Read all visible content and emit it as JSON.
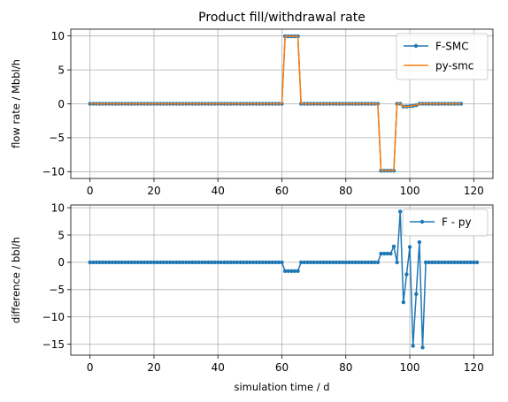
{
  "chart_data": [
    {
      "type": "line",
      "title": "Product fill/withdrawal rate",
      "xlabel": "",
      "ylabel": "flow rate / Mbbl/h",
      "xlim": [
        -6,
        126
      ],
      "ylim": [
        -11,
        11
      ],
      "xticks": [
        0,
        20,
        40,
        60,
        80,
        100,
        120
      ],
      "yticks": [
        -10,
        -5,
        0,
        5,
        10
      ],
      "grid": true,
      "legend": "top-right",
      "x_start": 0,
      "x_step": 1,
      "colors": {
        "F-SMC": "#1f77b4",
        "py-smc": "#ff7f0e"
      },
      "series": [
        {
          "name": "F-SMC",
          "marker": "circle",
          "values": [
            0,
            0,
            0,
            0,
            0,
            0,
            0,
            0,
            0,
            0,
            0,
            0,
            0,
            0,
            0,
            0,
            0,
            0,
            0,
            0,
            0,
            0,
            0,
            0,
            0,
            0,
            0,
            0,
            0,
            0,
            0,
            0,
            0,
            0,
            0,
            0,
            0,
            0,
            0,
            0,
            0,
            0,
            0,
            0,
            0,
            0,
            0,
            0,
            0,
            0,
            0,
            0,
            0,
            0,
            0,
            0,
            0,
            0,
            0,
            0,
            0,
            9.95,
            9.95,
            9.95,
            9.95,
            9.95,
            0,
            0,
            0,
            0,
            0,
            0,
            0,
            0,
            0,
            0,
            0,
            0,
            0,
            0,
            0,
            0,
            0,
            0,
            0,
            0,
            0,
            0,
            0,
            0,
            0,
            -9.85,
            -9.85,
            -9.85,
            -9.85,
            -9.85,
            0,
            0,
            -0.4,
            -0.4,
            -0.35,
            -0.3,
            -0.2,
            0,
            0,
            0,
            0,
            0,
            0,
            0,
            0,
            0,
            0,
            0,
            0,
            0,
            0
          ]
        },
        {
          "name": "py-smc",
          "marker": "none",
          "values": [
            0,
            0,
            0,
            0,
            0,
            0,
            0,
            0,
            0,
            0,
            0,
            0,
            0,
            0,
            0,
            0,
            0,
            0,
            0,
            0,
            0,
            0,
            0,
            0,
            0,
            0,
            0,
            0,
            0,
            0,
            0,
            0,
            0,
            0,
            0,
            0,
            0,
            0,
            0,
            0,
            0,
            0,
            0,
            0,
            0,
            0,
            0,
            0,
            0,
            0,
            0,
            0,
            0,
            0,
            0,
            0,
            0,
            0,
            0,
            0,
            0,
            9.95,
            9.95,
            9.95,
            9.95,
            9.95,
            0,
            0,
            0,
            0,
            0,
            0,
            0,
            0,
            0,
            0,
            0,
            0,
            0,
            0,
            0,
            0,
            0,
            0,
            0,
            0,
            0,
            0,
            0,
            0,
            0,
            -9.85,
            -9.85,
            -9.85,
            -9.85,
            -9.85,
            0,
            0,
            -0.4,
            -0.4,
            -0.35,
            -0.3,
            -0.2,
            0,
            0,
            0,
            0,
            0,
            0,
            0,
            0,
            0,
            0,
            0,
            0,
            0,
            0
          ]
        }
      ]
    },
    {
      "type": "line",
      "title": "",
      "xlabel": "simulation time / d",
      "ylabel": "difference /  bbl/h",
      "xlim": [
        -6,
        126
      ],
      "ylim": [
        -17,
        10.5
      ],
      "xticks": [
        0,
        20,
        40,
        60,
        80,
        100,
        120
      ],
      "yticks": [
        -15,
        -10,
        -5,
        0,
        5,
        10
      ],
      "grid": true,
      "legend": "top-right",
      "x_start": 0,
      "x_step": 1,
      "colors": {
        "F - py": "#1f77b4"
      },
      "series": [
        {
          "name": "F - py",
          "marker": "circle",
          "values": [
            0,
            0,
            0,
            0,
            0,
            0,
            0,
            0,
            0,
            0,
            0,
            0,
            0,
            0,
            0,
            0,
            0,
            0,
            0,
            0,
            0,
            0,
            0,
            0,
            0,
            0,
            0,
            0,
            0,
            0,
            0,
            0,
            0,
            0,
            0,
            0,
            0,
            0,
            0,
            0,
            0,
            0,
            0,
            0,
            0,
            0,
            0,
            0,
            0,
            0,
            0,
            0,
            0,
            0,
            0,
            0,
            0,
            0,
            0,
            0,
            0,
            -1.6,
            -1.6,
            -1.6,
            -1.6,
            -1.6,
            0,
            0,
            0,
            0,
            0,
            0,
            0,
            0,
            0,
            0,
            0,
            0,
            0,
            0,
            0,
            0,
            0,
            0,
            0,
            0,
            0,
            0,
            0,
            0,
            0,
            1.6,
            1.6,
            1.6,
            1.6,
            2.9,
            0,
            9.3,
            -7.3,
            -2.2,
            2.8,
            -15.3,
            -5.8,
            3.7,
            -15.6,
            0,
            0,
            0,
            0,
            0,
            0,
            0,
            0,
            0,
            0,
            0,
            0,
            0,
            0,
            0,
            0,
            0
          ]
        }
      ]
    }
  ]
}
